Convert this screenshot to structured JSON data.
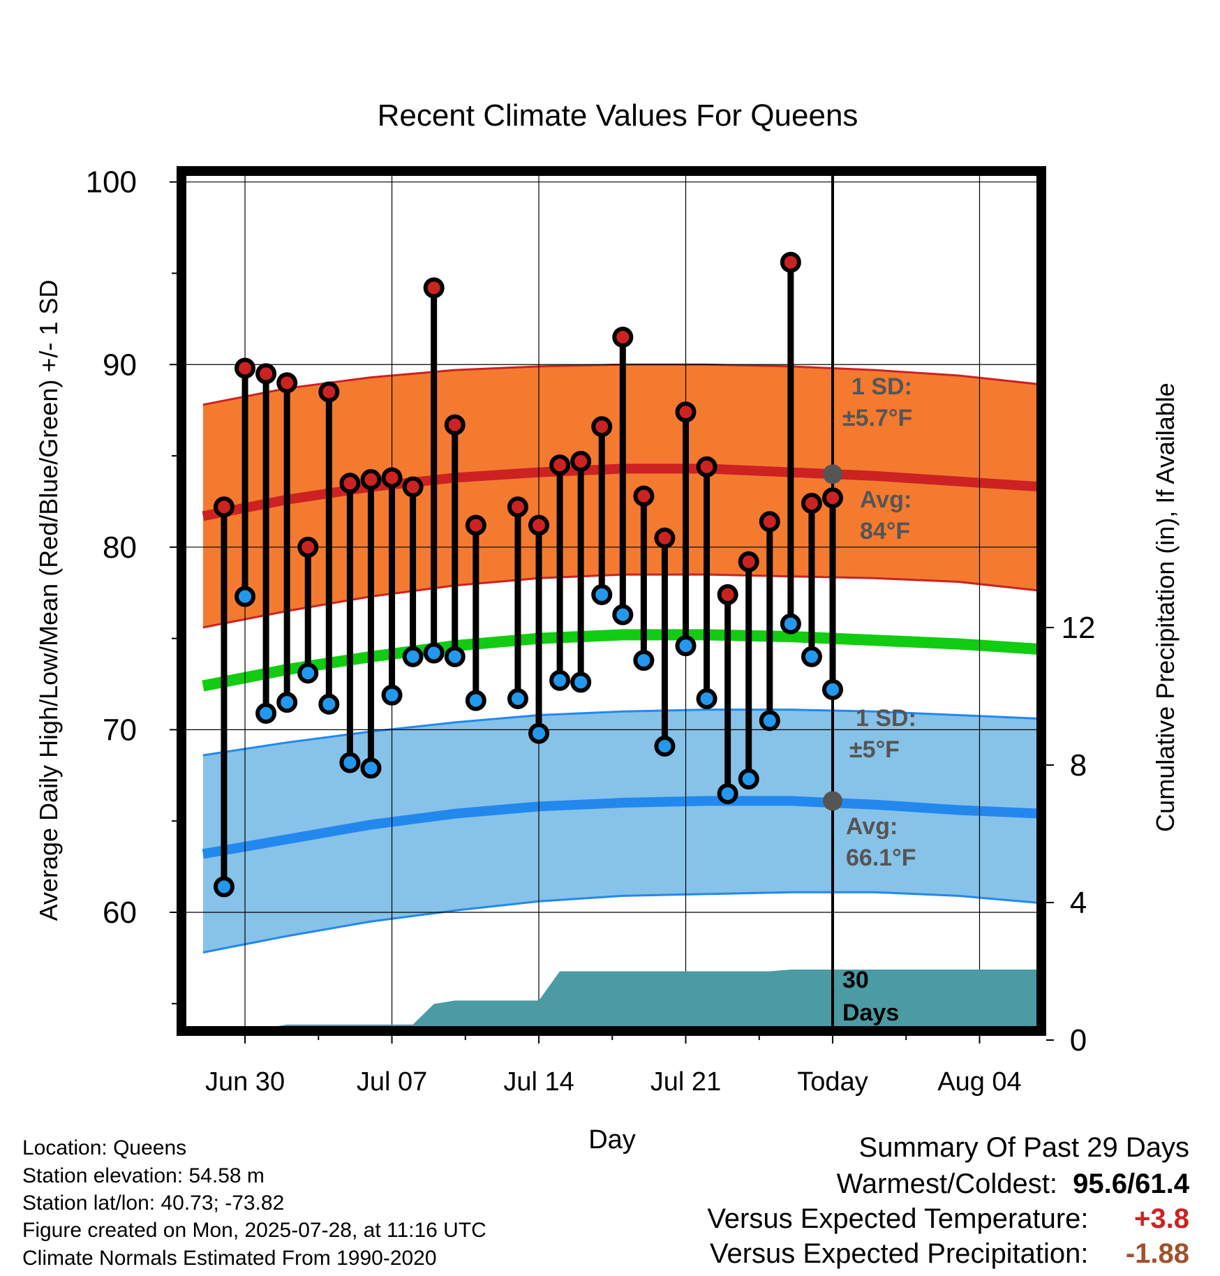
{
  "chart_data": {
    "type": "line",
    "title": "Recent Climate Values For Queens",
    "xlabel": "Day",
    "ylabel": "Average Daily High/Low/Mean (Red/Blue/Green) +/- 1 SD",
    "y2label": "Cumulative Precipitation (in), If Available",
    "ylim": [
      53.5,
      100.6
    ],
    "y2lim": [
      0,
      24
    ],
    "y_ticks": [
      "60",
      "70",
      "80",
      "90",
      "100"
    ],
    "y2_ticks": [
      "0",
      "4",
      "8",
      "12"
    ],
    "x_range_days": [
      -37.5,
      13.5
    ],
    "x_ticks": [
      {
        "day": -28,
        "label": "Jun 30"
      },
      {
        "day": -21,
        "label": "Jul 07"
      },
      {
        "day": -14,
        "label": "Jul 14"
      },
      {
        "day": -7,
        "label": "Jul 21"
      },
      {
        "day": 0,
        "label": "Today"
      },
      {
        "day": 7,
        "label": "Aug 04"
      }
    ],
    "grid": true,
    "normals": {
      "x": [
        -30,
        -26,
        -22,
        -18,
        -14,
        -10,
        -6,
        -2,
        2,
        6,
        10
      ],
      "high_avg": [
        81.7,
        82.6,
        83.3,
        83.8,
        84.1,
        84.3,
        84.3,
        84.1,
        83.9,
        83.6,
        83.3
      ],
      "high_upper": [
        87.8,
        88.7,
        89.3,
        89.7,
        89.9,
        90.0,
        90.0,
        89.9,
        89.7,
        89.4,
        88.9
      ],
      "high_lower": [
        75.6,
        76.5,
        77.3,
        77.9,
        78.3,
        78.5,
        78.5,
        78.4,
        78.3,
        78.1,
        77.6
      ],
      "mean_avg": [
        72.4,
        73.3,
        74.0,
        74.6,
        75.0,
        75.2,
        75.2,
        75.1,
        74.9,
        74.7,
        74.4
      ],
      "low_avg": [
        63.2,
        64.0,
        64.8,
        65.4,
        65.8,
        66.0,
        66.1,
        66.1,
        65.9,
        65.6,
        65.4
      ],
      "low_upper": [
        68.6,
        69.3,
        69.9,
        70.4,
        70.8,
        71.0,
        71.1,
        71.1,
        71.0,
        70.8,
        70.6
      ],
      "low_lower": [
        57.8,
        58.7,
        59.5,
        60.1,
        60.6,
        60.9,
        61.0,
        61.1,
        61.1,
        60.9,
        60.5
      ]
    },
    "series": [
      {
        "name": "High",
        "color": "#cc2222",
        "x": [
          -29,
          -28,
          -27,
          -26,
          -25,
          -24,
          -23,
          -22,
          -21,
          -20,
          -19,
          -18,
          -17,
          -15,
          -14,
          -13,
          -12,
          -11,
          -10,
          -9,
          -8,
          -7,
          -6,
          -5,
          -4,
          -3,
          -2,
          -1,
          0
        ],
        "values": [
          82.2,
          89.8,
          89.5,
          89.0,
          80.0,
          88.5,
          83.5,
          83.7,
          83.8,
          83.3,
          94.2,
          86.7,
          81.2,
          82.2,
          81.2,
          84.5,
          84.7,
          86.6,
          91.5,
          82.8,
          80.5,
          87.4,
          84.4,
          77.4,
          79.2,
          81.4,
          95.6,
          82.4,
          82.7
        ]
      },
      {
        "name": "Low",
        "color": "#2299ee",
        "x": [
          -29,
          -28,
          -27,
          -26,
          -25,
          -24,
          -23,
          -22,
          -21,
          -20,
          -19,
          -18,
          -17,
          -15,
          -14,
          -13,
          -12,
          -11,
          -10,
          -9,
          -8,
          -7,
          -6,
          -5,
          -4,
          -3,
          -2,
          -1,
          0
        ],
        "values": [
          61.4,
          77.3,
          70.9,
          71.5,
          73.1,
          71.4,
          68.2,
          67.9,
          71.9,
          74.0,
          74.2,
          74.0,
          71.6,
          71.7,
          69.8,
          72.7,
          72.6,
          77.4,
          76.3,
          73.8,
          69.1,
          74.6,
          71.7,
          66.5,
          67.3,
          70.5,
          75.8,
          74.0,
          72.2
        ]
      },
      {
        "name": "Cumulative Precipitation",
        "color": "#4a9ba3",
        "x": [
          -28,
          -27,
          -26,
          -25,
          -24,
          -23,
          -22,
          -21,
          -20,
          -19,
          -18,
          -17,
          -16,
          -15,
          -14,
          -13,
          -12,
          -11,
          -10,
          -9,
          -8,
          -7,
          -6,
          -5,
          -4,
          -3,
          -2,
          -1,
          0,
          13.5
        ],
        "values": [
          0.0,
          0.35,
          0.45,
          0.45,
          0.45,
          0.45,
          0.45,
          0.45,
          0.45,
          1.05,
          1.15,
          1.15,
          1.15,
          1.15,
          1.15,
          2.0,
          2.0,
          2.0,
          2.0,
          2.0,
          2.0,
          2.0,
          2.0,
          2.0,
          2.0,
          2.0,
          2.05,
          2.05,
          2.05,
          2.05
        ]
      }
    ],
    "annotations": {
      "high_sd_label": "1 SD:",
      "high_sd_value": "±5.7°F",
      "high_avg_label": "Avg:",
      "high_avg_value": "84°F",
      "low_sd_label": "1 SD:",
      "low_sd_value": "±5°F",
      "low_avg_label": "Avg:",
      "low_avg_value": "66.1°F",
      "precip_label_1": "30",
      "precip_label_2": "Days",
      "today_high_avg": 84,
      "today_low_avg": 66.1
    },
    "colors": {
      "high_band": "#f47a30",
      "high_line": "#cc2222",
      "mean_line": "#11cc11",
      "low_band": "#87c2e8",
      "low_line": "#2288ee",
      "precip_fill": "#4a9ba3",
      "annotation_text": "#555555"
    }
  },
  "meta": {
    "location": "Location: Queens",
    "elevation": "Station elevation: 54.58 m",
    "latlon": "Station lat/lon: 40.73; -73.82",
    "created": "Figure created on Mon, 2025-07-28, at 11:16 UTC",
    "normals": "Climate Normals Estimated From 1990-2020"
  },
  "summary": {
    "title": "Summary Of Past 29 Days",
    "warm_cold_label": "Warmest/Coldest:",
    "warm_cold_value": "95.6/61.4",
    "temp_label": "Versus Expected Temperature:",
    "temp_value": "+3.8",
    "temp_color": "#cc2222",
    "precip_label": "Versus Expected Precipitation:",
    "precip_value": "-1.88",
    "precip_color": "#a0522d"
  }
}
